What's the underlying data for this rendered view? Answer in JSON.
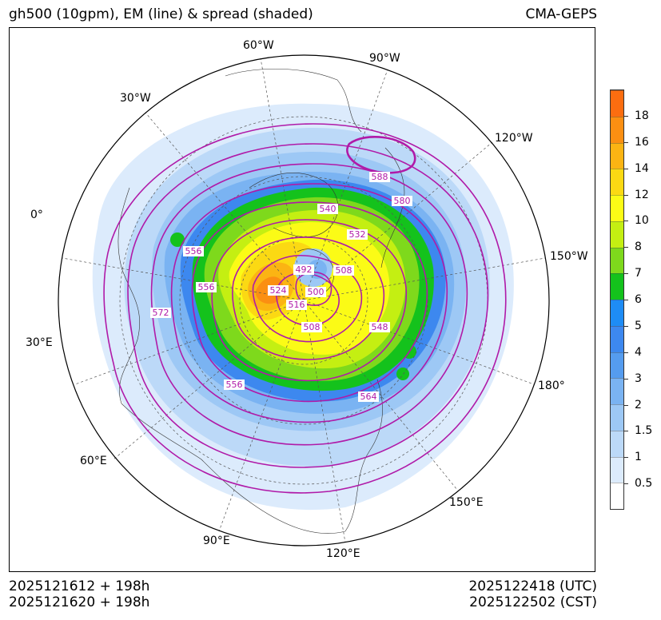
{
  "header": {
    "title": "gh500 (10gpm), EM (line) & spread (shaded)",
    "source": "CMA-GEPS"
  },
  "map": {
    "projection": "north-polar-stereographic",
    "longitude_labels": [
      "60°W",
      "90°W",
      "30°W",
      "120°W",
      "0°",
      "150°W",
      "30°E",
      "180°",
      "60°E",
      "150°E",
      "90°E",
      "120°E"
    ],
    "contour_labels": [
      "588",
      "580",
      "540",
      "532",
      "556",
      "556",
      "492",
      "508",
      "500",
      "524",
      "516",
      "572",
      "508",
      "548",
      "556",
      "564"
    ],
    "contour_color": "#b01aa8"
  },
  "colorbar": {
    "levels": [
      "0.5",
      "1",
      "1.5",
      "2",
      "3",
      "4",
      "5",
      "6",
      "7",
      "8",
      "10",
      "12",
      "14",
      "16",
      "18"
    ],
    "colors": [
      "#ffffff",
      "#dcebfc",
      "#bcd9f8",
      "#9dc8f5",
      "#7ab3f2",
      "#559cef",
      "#3d88ef",
      "#1e8cf5",
      "#14c21c",
      "#7ed91c",
      "#c4ef12",
      "#fbfb16",
      "#fbd913",
      "#fbb413",
      "#fb8f12",
      "#fb6d10"
    ]
  },
  "footer": {
    "init_utc": "2025121612 + 198h",
    "init_cst": "2025121620 + 198h",
    "valid_utc": "2025122418 (UTC)",
    "valid_cst": "2025122502 (CST)"
  }
}
